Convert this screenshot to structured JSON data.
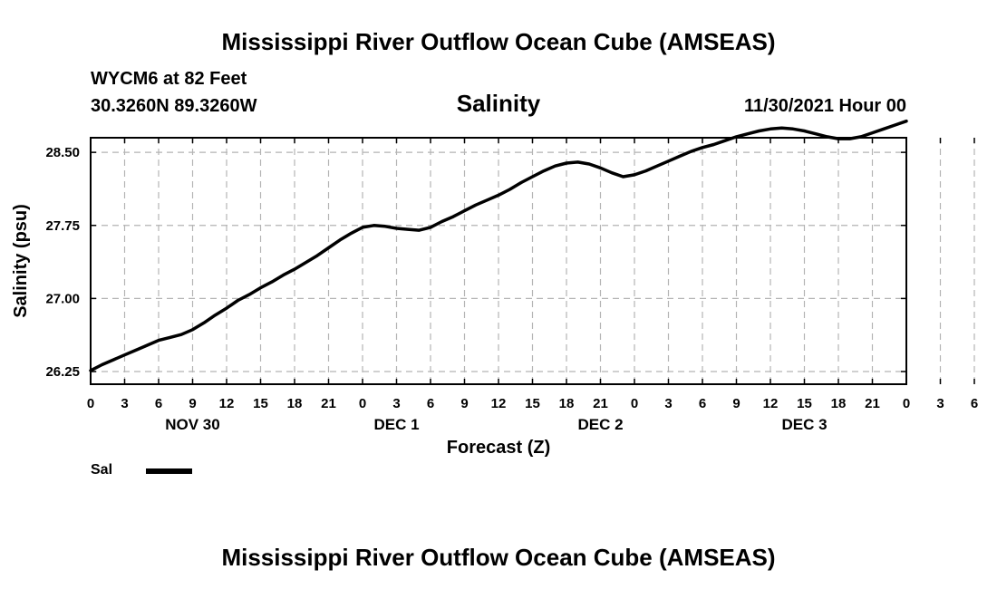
{
  "header": {
    "title": "Mississippi River Outflow Ocean Cube (AMSEAS)",
    "station": "WYCM6 at 82 Feet",
    "coords": "30.3260N  89.3260W",
    "subtitle": "Salinity",
    "datetime": "11/30/2021 Hour 00"
  },
  "footer": {
    "title": "Mississippi River Outflow Ocean Cube (AMSEAS)"
  },
  "legend": {
    "label": "Sal",
    "color": "#000000"
  },
  "chart_data": {
    "type": "line",
    "title": "Salinity",
    "xlabel": "Forecast (Z)",
    "ylabel": "Salinity (psu)",
    "xlim": [
      0,
      72
    ],
    "ylim": [
      26.12,
      28.65
    ],
    "yticks": [
      26.25,
      27.0,
      27.75,
      28.5
    ],
    "ytick_labels": [
      "26.25",
      "27.00",
      "27.75",
      "28.50"
    ],
    "xtick_labels": [
      "0",
      "3",
      "6",
      "9",
      "12",
      "15",
      "18",
      "21",
      "0",
      "3",
      "6",
      "9",
      "12",
      "15",
      "18",
      "21",
      "0",
      "3",
      "6",
      "9",
      "12",
      "15",
      "18",
      "21",
      "0",
      "3",
      "6",
      "9",
      "12",
      "15",
      "18",
      "21",
      "0"
    ],
    "day_labels": [
      {
        "label": "NOV 30",
        "hour": 9
      },
      {
        "label": "DEC 1",
        "hour": 27
      },
      {
        "label": "DEC 2",
        "hour": 45
      },
      {
        "label": "DEC 3",
        "hour": 63
      }
    ],
    "grid": true,
    "series": [
      {
        "name": "Sal",
        "x": [
          0,
          1,
          2,
          3,
          4,
          5,
          6,
          7,
          8,
          9,
          10,
          11,
          12,
          13,
          14,
          15,
          16,
          17,
          18,
          19,
          20,
          21,
          22,
          23,
          24,
          25,
          26,
          27,
          28,
          29,
          30,
          31,
          32,
          33,
          34,
          35,
          36,
          37,
          38,
          39,
          40,
          41,
          42,
          43,
          44,
          45,
          46,
          47,
          48,
          49,
          50,
          51,
          52,
          53,
          54,
          55,
          56,
          57,
          58,
          59,
          60,
          61,
          62,
          63,
          64,
          65,
          66,
          67,
          68,
          69,
          70,
          71,
          72
        ],
        "values": [
          26.26,
          26.32,
          26.37,
          26.42,
          26.47,
          26.52,
          26.57,
          26.6,
          26.63,
          26.68,
          26.75,
          26.83,
          26.9,
          26.98,
          27.04,
          27.11,
          27.17,
          27.24,
          27.3,
          27.37,
          27.44,
          27.52,
          27.6,
          27.67,
          27.73,
          27.75,
          27.74,
          27.72,
          27.71,
          27.7,
          27.73,
          27.79,
          27.84,
          27.9,
          27.96,
          28.01,
          28.06,
          28.12,
          28.19,
          28.25,
          28.31,
          28.36,
          28.39,
          28.4,
          28.38,
          28.34,
          28.29,
          28.25,
          28.27,
          28.31,
          28.36,
          28.41,
          28.46,
          28.51,
          28.55,
          28.58,
          28.62,
          28.66,
          28.69,
          28.72,
          28.74,
          28.75,
          28.74,
          28.72,
          28.69,
          28.66,
          28.64,
          28.64,
          28.66,
          28.7,
          28.74,
          28.78,
          28.82
        ]
      }
    ]
  }
}
